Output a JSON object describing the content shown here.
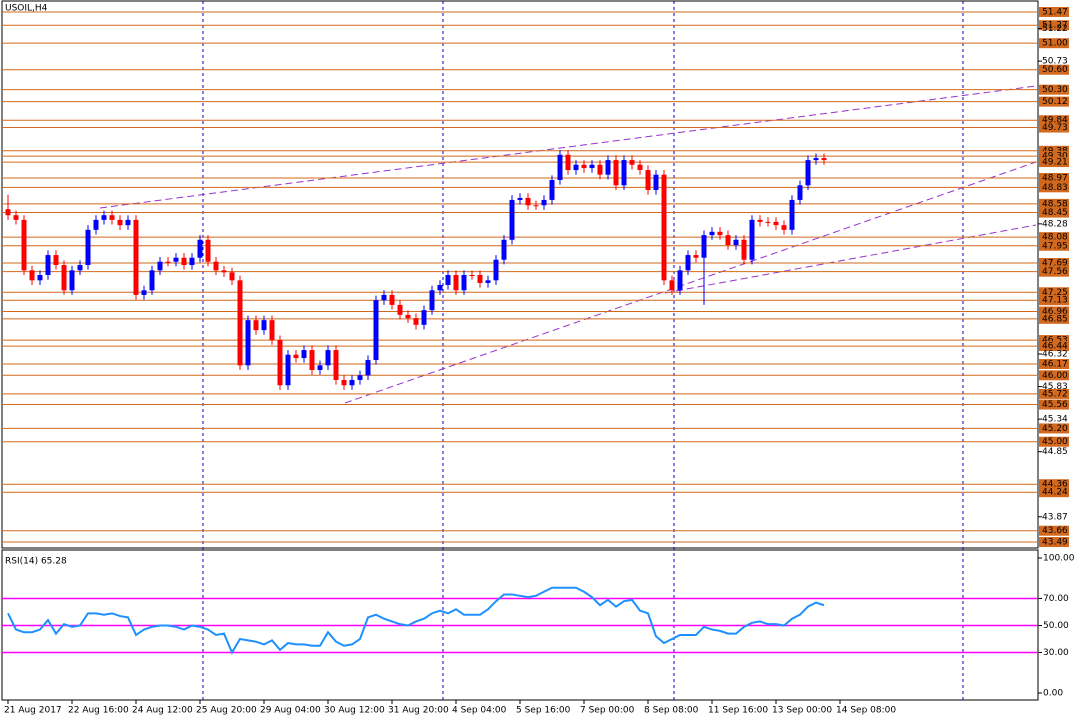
{
  "chart_data": [
    {
      "type": "candlestick",
      "title": "USOIL,H4",
      "open": [
        48.5,
        48.41,
        48.34,
        47.58,
        47.43,
        47.51,
        47.81,
        47.66,
        47.28,
        47.58,
        47.66,
        48.19,
        48.34,
        48.41,
        48.34,
        48.26,
        48.34,
        47.21,
        47.28,
        47.58,
        47.71,
        47.71,
        47.77,
        47.66,
        47.77,
        48.04,
        47.71,
        47.58,
        47.55,
        47.43,
        46.15,
        46.83,
        46.68,
        46.83,
        46.53,
        45.85,
        46.31,
        46.26,
        46.38,
        46.08,
        46.15,
        46.38,
        45.93,
        45.85,
        45.93,
        46.0,
        46.23,
        47.13,
        47.21,
        47.06,
        46.91,
        46.86,
        46.76,
        46.98,
        47.28,
        47.36,
        47.51,
        47.28,
        47.51,
        47.51,
        47.39,
        47.43,
        47.74,
        48.04,
        48.64,
        48.67,
        48.56,
        48.56,
        48.64,
        48.94,
        49.32,
        49.09,
        49.17,
        49.12,
        49.17,
        49.02,
        49.24,
        48.86,
        49.24,
        49.17,
        49.09,
        48.79,
        49.02,
        47.43,
        47.28,
        47.58,
        47.81,
        47.77,
        48.11,
        48.16,
        48.11,
        47.96,
        48.04,
        47.74,
        48.34,
        48.31,
        48.31,
        48.26,
        48.19,
        48.64,
        48.86,
        49.24,
        49.27
      ],
      "high": [
        48.72,
        48.48,
        48.41,
        47.65,
        47.58,
        47.88,
        47.88,
        47.73,
        47.65,
        47.73,
        48.26,
        48.41,
        48.48,
        48.48,
        48.41,
        48.41,
        48.41,
        47.35,
        47.65,
        47.78,
        47.78,
        47.84,
        47.84,
        47.84,
        48.11,
        48.11,
        47.78,
        47.65,
        47.62,
        47.5,
        46.9,
        46.9,
        46.9,
        46.9,
        46.6,
        46.38,
        46.38,
        46.45,
        46.45,
        46.22,
        46.45,
        46.45,
        46.0,
        46.0,
        46.07,
        46.3,
        47.2,
        47.28,
        47.28,
        47.13,
        46.98,
        46.93,
        47.05,
        47.35,
        47.43,
        47.58,
        47.58,
        47.58,
        47.58,
        47.58,
        47.5,
        47.81,
        48.11,
        48.71,
        48.74,
        48.74,
        48.63,
        48.71,
        49.01,
        49.39,
        49.39,
        49.24,
        49.24,
        49.24,
        49.24,
        49.31,
        49.31,
        49.31,
        49.31,
        49.24,
        49.16,
        49.09,
        49.09,
        47.5,
        47.65,
        47.88,
        47.88,
        48.18,
        48.23,
        48.23,
        48.18,
        48.11,
        48.11,
        48.41,
        48.41,
        48.38,
        48.38,
        48.33,
        48.71,
        48.93,
        49.31,
        49.34,
        49.34
      ],
      "low": [
        48.34,
        48.27,
        47.51,
        47.36,
        47.36,
        47.44,
        47.59,
        47.21,
        47.21,
        47.51,
        47.59,
        48.12,
        48.27,
        48.27,
        48.19,
        48.19,
        47.14,
        47.14,
        47.21,
        47.51,
        47.64,
        47.64,
        47.59,
        47.59,
        47.7,
        47.64,
        47.51,
        47.48,
        47.36,
        46.08,
        46.08,
        46.61,
        46.61,
        46.46,
        45.78,
        45.78,
        46.19,
        46.19,
        46.01,
        46.01,
        46.08,
        45.86,
        45.78,
        45.78,
        45.86,
        45.93,
        46.16,
        47.06,
        46.99,
        46.84,
        46.79,
        46.69,
        46.69,
        46.91,
        47.21,
        47.29,
        47.21,
        47.21,
        47.44,
        47.32,
        47.32,
        47.36,
        47.67,
        47.97,
        48.57,
        48.49,
        48.49,
        48.49,
        48.57,
        48.87,
        49.02,
        49.02,
        49.05,
        49.05,
        48.95,
        48.95,
        48.79,
        48.79,
        49.1,
        49.02,
        48.72,
        48.72,
        47.36,
        47.21,
        47.21,
        47.51,
        47.7,
        47.06,
        48.04,
        48.04,
        47.89,
        47.89,
        47.67,
        47.67,
        48.24,
        48.24,
        48.19,
        48.12,
        48.12,
        48.57,
        48.79,
        49.17,
        49.17
      ],
      "close": [
        48.41,
        48.34,
        47.58,
        47.43,
        47.51,
        47.81,
        47.66,
        47.28,
        47.58,
        47.66,
        48.19,
        48.34,
        48.41,
        48.34,
        48.26,
        48.34,
        47.21,
        47.28,
        47.58,
        47.71,
        47.71,
        47.77,
        47.66,
        47.77,
        48.04,
        47.71,
        47.58,
        47.55,
        47.43,
        46.15,
        46.83,
        46.68,
        46.83,
        46.53,
        45.85,
        46.31,
        46.26,
        46.38,
        46.08,
        46.15,
        46.38,
        45.93,
        45.85,
        45.93,
        46.0,
        46.23,
        47.13,
        47.21,
        47.06,
        46.91,
        46.86,
        46.76,
        46.98,
        47.28,
        47.36,
        47.51,
        47.28,
        47.51,
        47.51,
        47.39,
        47.43,
        47.74,
        48.04,
        48.64,
        48.67,
        48.56,
        48.56,
        48.64,
        48.94,
        49.32,
        49.09,
        49.17,
        49.12,
        49.17,
        49.02,
        49.24,
        48.86,
        49.24,
        49.17,
        49.09,
        48.79,
        49.02,
        47.43,
        47.28,
        47.58,
        47.81,
        47.77,
        48.11,
        48.16,
        48.11,
        47.96,
        48.04,
        47.74,
        48.34,
        48.31,
        48.31,
        48.26,
        48.19,
        48.64,
        48.86,
        49.24,
        49.27,
        49.24
      ],
      "up_color": "#0000ff",
      "down_color": "#ff0000",
      "level_color": "#d2691e",
      "ylim": [
        43.4,
        51.65
      ],
      "yticks": [
        {
          "value": 51.22,
          "label": "51.22"
        },
        {
          "value": 50.73,
          "label": "50.73"
        },
        {
          "value": 48.28,
          "label": "48.28"
        },
        {
          "value": 46.32,
          "label": "46.32"
        },
        {
          "value": 45.83,
          "label": "45.83"
        },
        {
          "value": 45.34,
          "label": "45.34"
        },
        {
          "value": 44.85,
          "label": "44.85"
        },
        {
          "value": 43.87,
          "label": "43.87"
        }
      ],
      "levels": [
        {
          "value": 51.47,
          "label": "51.47"
        },
        {
          "value": 51.27,
          "label": "51.27"
        },
        {
          "value": 51,
          "label": "51.00"
        },
        {
          "value": 50.6,
          "label": "50.60"
        },
        {
          "value": 50.3,
          "label": "50.30"
        },
        {
          "value": 50.12,
          "label": "50.12"
        },
        {
          "value": 49.84,
          "label": "49.84"
        },
        {
          "value": 49.73,
          "label": "49.73"
        },
        {
          "value": 49.38,
          "label": "49.38"
        },
        {
          "value": 49.3,
          "label": "49.30"
        },
        {
          "value": 49.21,
          "label": "49.21"
        },
        {
          "value": 48.97,
          "label": "48.97"
        },
        {
          "value": 48.83,
          "label": "48.83"
        },
        {
          "value": 48.58,
          "label": "48.58"
        },
        {
          "value": 48.45,
          "label": "48.45"
        },
        {
          "value": 48.08,
          "label": "48.08"
        },
        {
          "value": 47.95,
          "label": "47.95"
        },
        {
          "value": 47.69,
          "label": "47.69"
        },
        {
          "value": 47.56,
          "label": "47.56"
        },
        {
          "value": 47.25,
          "label": "47.25"
        },
        {
          "value": 47.13,
          "label": "47.13"
        },
        {
          "value": 46.96,
          "label": "46.96"
        },
        {
          "value": 46.85,
          "label": "46.85"
        },
        {
          "value": 46.53,
          "label": "46.53"
        },
        {
          "value": 46.44,
          "label": "46.44"
        },
        {
          "value": 46.17,
          "label": "46.17"
        },
        {
          "value": 46,
          "label": "46.00"
        },
        {
          "value": 45.72,
          "label": "45.72"
        },
        {
          "value": 45.56,
          "label": "45.56"
        },
        {
          "value": 45.2,
          "label": "45.20"
        },
        {
          "value": 45,
          "label": "45.00"
        },
        {
          "value": 44.36,
          "label": "44.36"
        },
        {
          "value": 44.24,
          "label": "44.24"
        },
        {
          "value": 43.66,
          "label": "43.66"
        },
        {
          "value": 43.49,
          "label": "43.49"
        }
      ],
      "x_labels": [
        "21 Aug 2017",
        "22 Aug 16:00",
        "24 Aug 12:00",
        "25 Aug 20:00",
        "29 Aug 04:00",
        "30 Aug 12:00",
        "31 Aug 20:00",
        "4 Sep 04:00",
        "5 Sep 16:00",
        "7 Sep 00:00",
        "8 Sep 08:00",
        "11 Sep 16:00",
        "13 Sep 00:00",
        "14 Sep 08:00"
      ]
    },
    {
      "type": "line",
      "title": "RSI(14) 65.28",
      "color": "#1e90ff",
      "level_color": "#ff00ff",
      "values": [
        59,
        47,
        45,
        45,
        47,
        54,
        44,
        51,
        49,
        50,
        59,
        59,
        58,
        59,
        57,
        56,
        43,
        47,
        49,
        50,
        50,
        49,
        47,
        50,
        49,
        47,
        43,
        44,
        30,
        40,
        39,
        38,
        36,
        39,
        32,
        37,
        36,
        36,
        35,
        35,
        45,
        38,
        35,
        36,
        40,
        56,
        58,
        55,
        53,
        51,
        50,
        53,
        55,
        59,
        61,
        59,
        62,
        58,
        58,
        58,
        62,
        68,
        73,
        73,
        72,
        71,
        72,
        75,
        78,
        78,
        78,
        78,
        75,
        71,
        65,
        69,
        64,
        68,
        69,
        61,
        59,
        42,
        37,
        40,
        43,
        43,
        43,
        49,
        47,
        46,
        44,
        44,
        49,
        52,
        53,
        51,
        51,
        50,
        55,
        58,
        64,
        67,
        65
      ],
      "ylim": [
        0,
        100
      ],
      "yticks": [
        {
          "value": 100,
          "label": "100.00"
        },
        {
          "value": 70,
          "label": "70.00"
        },
        {
          "value": 50,
          "label": "50.00"
        },
        {
          "value": 30,
          "label": "30.00"
        },
        {
          "value": 0,
          "label": "0.00"
        }
      ],
      "levels": [
        70,
        50,
        30
      ]
    }
  ]
}
